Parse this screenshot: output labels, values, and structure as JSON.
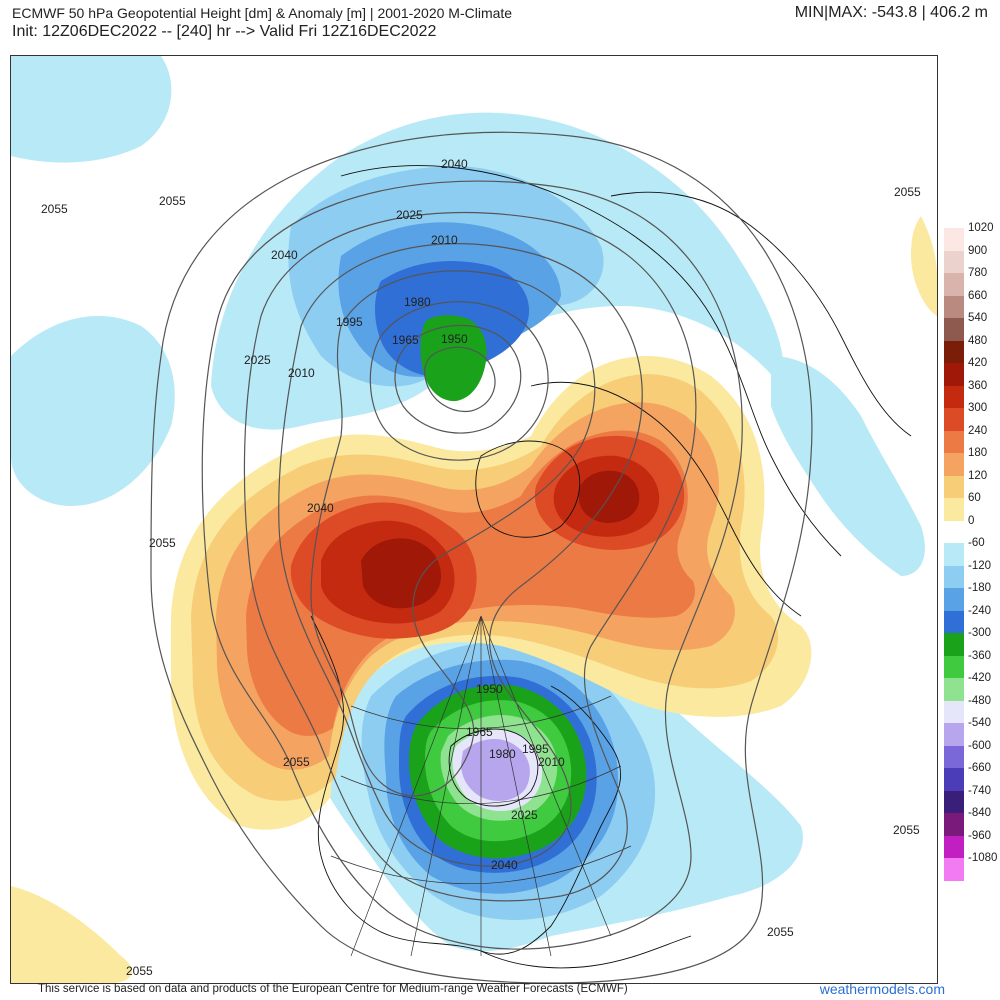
{
  "header": {
    "title": "ECMWF 50 hPa Geopotential Height [dm] & Anomaly [m] | 2001-2020 M-Climate",
    "subtitle": "Init: 12Z06DEC2022 -- [240] hr --> Valid Fri 12Z16DEC2022",
    "minmax": "MIN|MAX: -543.8 | 406.2 m"
  },
  "colors": {
    "pos60": "#fbe9a0",
    "pos120": "#f8cd78",
    "pos180": "#f4a460",
    "pos240": "#ec7a44",
    "pos300": "#dd4a26",
    "pos360": "#c42a10",
    "pos420": "#a01808",
    "neg60": "#b8e9f6",
    "neg120": "#8ecdf2",
    "neg180": "#5aa2e6",
    "neg240": "#2f6fd6",
    "neg300": "#1aa31a",
    "neg360": "#3fca3f",
    "neg420": "#8fe28f",
    "neg480": "#e6e6fa",
    "neg540": "#b7a6ee"
  },
  "legend": [
    {
      "label": "1020",
      "color": "#fbe8e4"
    },
    {
      "label": "900",
      "color": "#ecd2cc"
    },
    {
      "label": "780",
      "color": "#d8b4ac"
    },
    {
      "label": "660",
      "color": "#b98a80"
    },
    {
      "label": "540",
      "color": "#8e5a50"
    },
    {
      "label": "480",
      "color": "#7a1e0a"
    },
    {
      "label": "420",
      "color": "#a01808"
    },
    {
      "label": "360",
      "color": "#c42a10"
    },
    {
      "label": "300",
      "color": "#dd4a26"
    },
    {
      "label": "240",
      "color": "#ec7a44"
    },
    {
      "label": "180",
      "color": "#f4a460"
    },
    {
      "label": "120",
      "color": "#f8cd78"
    },
    {
      "label": "60",
      "color": "#fbe9a0"
    },
    {
      "label": "0",
      "color": "#ffffff"
    },
    {
      "label": "-60",
      "color": "#b8e9f6"
    },
    {
      "label": "-120",
      "color": "#8ecdf2"
    },
    {
      "label": "-180",
      "color": "#5aa2e6"
    },
    {
      "label": "-240",
      "color": "#2f6fd6"
    },
    {
      "label": "-300",
      "color": "#1aa31a"
    },
    {
      "label": "-360",
      "color": "#3fca3f"
    },
    {
      "label": "-420",
      "color": "#8fe28f"
    },
    {
      "label": "-480",
      "color": "#e6e6fa"
    },
    {
      "label": "-540",
      "color": "#b7a6ee"
    },
    {
      "label": "-600",
      "color": "#7b68d8"
    },
    {
      "label": "-660",
      "color": "#4b3cb8"
    },
    {
      "label": "-740",
      "color": "#3a1f7a"
    },
    {
      "label": "-840",
      "color": "#7a1a7a"
    },
    {
      "label": "-960",
      "color": "#c21fc2"
    },
    {
      "label": "-1080",
      "color": "#f27af2"
    }
  ],
  "contour_labels": {
    "l2040_top": "2040",
    "l2025_top": "2025",
    "l2010_top": "2010",
    "l1980_top": "1980",
    "l1995_top": "1995",
    "l1965_top": "1965",
    "l1950_top": "1950",
    "l2055_nw": "2055",
    "l2055_nw2": "2055",
    "l2040_w": "2040",
    "l2025_w": "2025",
    "l2010_w": "2010",
    "l2040_mid": "2040",
    "l2055_w": "2055",
    "l2055_ne": "2055",
    "l1950_na": "1950",
    "l1965_na": "1965",
    "l1980_na": "1980",
    "l1995_na": "1995",
    "l2010_na": "2010",
    "l2025_na": "2025",
    "l2040_na": "2040",
    "l2055_sw": "2055",
    "l2055_e": "2055",
    "l2055_s": "2055",
    "l2055_sw2": "2055"
  },
  "footer": {
    "credit": "This service is based on data and products of the European Centre for Medium-range Weather Forecasts (ECMWF)",
    "site": "weathermodels.com"
  }
}
